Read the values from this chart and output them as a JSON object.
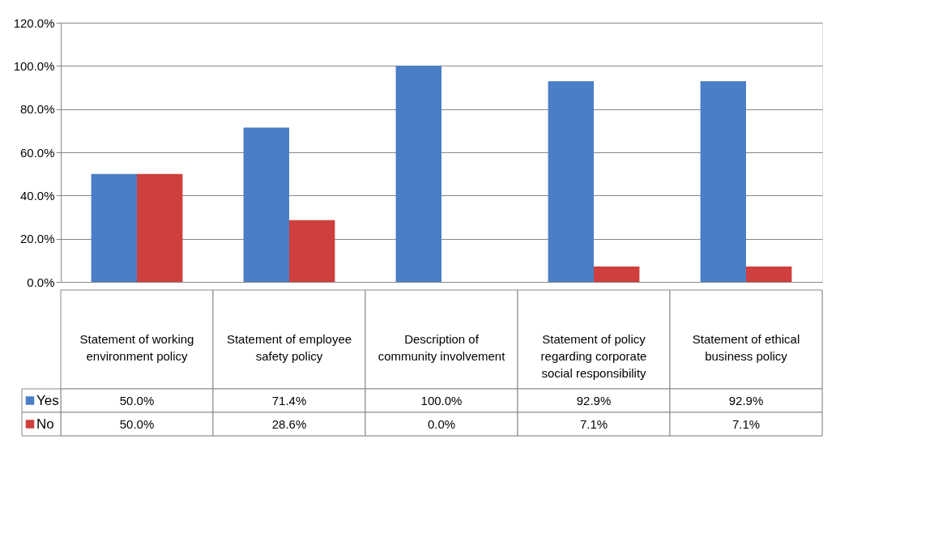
{
  "chart_data": {
    "type": "bar",
    "categories": [
      "Statement of working environment policy",
      "Statement of employee safety policy",
      "Description of community involvement",
      "Statement of policy regarding corporate social responsibility",
      "Statement of ethical business policy"
    ],
    "series": [
      {
        "name": "Yes",
        "color": "#4a7ec6",
        "values": [
          50.0,
          71.4,
          100.0,
          92.9,
          92.9
        ],
        "value_labels": [
          "50.0%",
          "71.4%",
          "100.0%",
          "92.9%",
          "92.9%"
        ]
      },
      {
        "name": "No",
        "color": "#cf3f3d",
        "values": [
          50.0,
          28.6,
          0.0,
          7.1,
          7.1
        ],
        "value_labels": [
          "50.0%",
          "28.6%",
          "0.0%",
          "7.1%",
          "7.1%"
        ]
      }
    ],
    "ylim": [
      0,
      120
    ],
    "yticks": [
      {
        "value": 0,
        "label": "0.0%"
      },
      {
        "value": 20,
        "label": "20.0%"
      },
      {
        "value": 40,
        "label": "40.0%"
      },
      {
        "value": 60,
        "label": "60.0%"
      },
      {
        "value": 80,
        "label": "80.0%"
      },
      {
        "value": 100,
        "label": "100.0%"
      },
      {
        "value": 120,
        "label": "120.0%"
      }
    ],
    "grid": "y",
    "legend": "bottom left"
  }
}
